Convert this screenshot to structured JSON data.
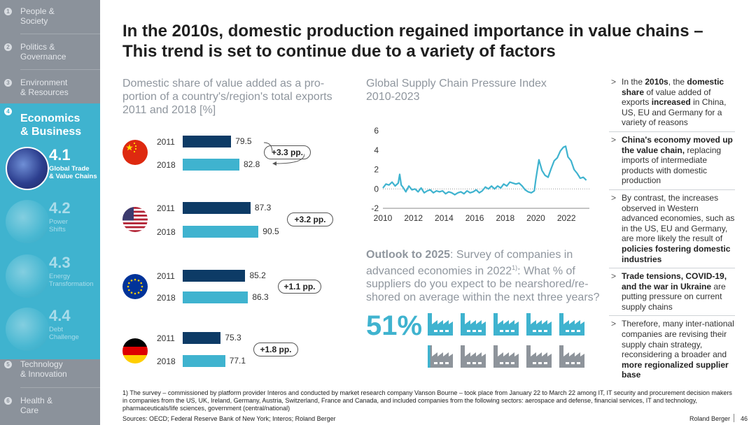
{
  "sidebar": {
    "items": [
      {
        "num": "1",
        "label": "People &\nSociety"
      },
      {
        "num": "2",
        "label": "Politics &\nGovernance"
      },
      {
        "num": "3",
        "label": "Environment\n& Resources"
      },
      {
        "num": "4",
        "label": "Economics\n& Business"
      },
      {
        "num": "5",
        "label": "Technology\n& Innovation"
      },
      {
        "num": "6",
        "label": "Health &\nCare"
      }
    ],
    "subs": [
      {
        "code": "4.1",
        "desc": "Global Trade\n& Value Chains"
      },
      {
        "code": "4.2",
        "desc": "Power\nShifts"
      },
      {
        "code": "4.3",
        "desc": "Energy\nTransformation"
      },
      {
        "code": "4.4",
        "desc": "Debt\nChallenge"
      }
    ]
  },
  "title": "In the 2010s, domestic production regained importance in value chains –\nThis trend is set to continue due to a variety of factors",
  "left_chart_title": "Domestic share of value added as a pro-\nportion of a country's/region's total exports\n2011 and 2018 [%]",
  "line_chart_title": "Global Supply Chain Pressure Index\n2010-2023",
  "outlook": {
    "lead": "Outlook to 2025",
    "text": ": Survey of companies in advanced economies in 2022",
    "sup": "1)",
    "text2": ": What % of suppliers do you expect to be nearshored/re-shored on average within the next three years?",
    "value": "51%",
    "share": 0.51
  },
  "colors": {
    "y2011": "#0d3b66",
    "y2018": "#3fb3cf",
    "sidebar": "#8b929b",
    "accent": "#3fb3cf"
  },
  "chart_data": [
    {
      "type": "bar",
      "title": "Domestic share of value added as a proportion of a country's/region's total exports 2011 and 2018 [%]",
      "categories": [
        "China",
        "US",
        "EU",
        "Germany"
      ],
      "series": [
        {
          "name": "2011",
          "values": [
            79.5,
            87.3,
            85.2,
            75.3
          ]
        },
        {
          "name": "2018",
          "values": [
            82.8,
            90.5,
            86.3,
            77.1
          ]
        }
      ],
      "value_labels": {
        "2011": [
          "79.5",
          "87.3",
          "85.2",
          "75.3"
        ],
        "2018": [
          "82.8",
          "90.5",
          "86.3",
          "77.1"
        ]
      },
      "deltas": [
        "+3.3 pp.",
        "+3.2 pp.",
        "+1.1 pp.",
        "+1.8 pp."
      ],
      "year_labels": [
        "2011",
        "2018"
      ],
      "icons": [
        "china-flag-icon",
        "us-flag-icon",
        "eu-flag-icon",
        "germany-flag-icon"
      ]
    },
    {
      "type": "line",
      "title": "Global Supply Chain Pressure Index 2010-2023",
      "xlim": [
        2010,
        2023.5
      ],
      "ylim": [
        -2,
        6
      ],
      "xticks": [
        "2010",
        "2012",
        "2014",
        "2016",
        "2018",
        "2020",
        "2022"
      ],
      "yticks": [
        "6",
        "4",
        "2",
        "0",
        "-2"
      ],
      "series": [
        {
          "name": "GSCPI",
          "x": [
            2010.0,
            2010.2,
            2010.4,
            2010.6,
            2010.8,
            2011.0,
            2011.1,
            2011.2,
            2011.3,
            2011.5,
            2011.7,
            2011.9,
            2012.1,
            2012.3,
            2012.5,
            2012.7,
            2012.9,
            2013.1,
            2013.3,
            2013.5,
            2013.7,
            2013.9,
            2014.1,
            2014.3,
            2014.5,
            2014.7,
            2014.9,
            2015.1,
            2015.3,
            2015.5,
            2015.7,
            2015.9,
            2016.1,
            2016.3,
            2016.5,
            2016.7,
            2016.9,
            2017.1,
            2017.3,
            2017.5,
            2017.7,
            2017.9,
            2018.1,
            2018.3,
            2018.5,
            2018.7,
            2018.9,
            2019.1,
            2019.3,
            2019.5,
            2019.7,
            2019.9,
            2020.0,
            2020.2,
            2020.4,
            2020.6,
            2020.8,
            2021.0,
            2021.2,
            2021.4,
            2021.6,
            2021.8,
            2021.95,
            2022.1,
            2022.3,
            2022.5,
            2022.7,
            2022.9,
            2023.1,
            2023.3
          ],
          "y": [
            0.1,
            0.5,
            0.4,
            0.7,
            0.3,
            0.6,
            1.5,
            0.4,
            0.2,
            -0.3,
            0.3,
            -0.1,
            0.0,
            -0.3,
            0.1,
            -0.4,
            -0.2,
            -0.1,
            -0.4,
            -0.2,
            -0.3,
            -0.2,
            -0.5,
            -0.3,
            -0.4,
            -0.6,
            -0.4,
            -0.3,
            -0.5,
            -0.2,
            -0.4,
            -0.3,
            -0.1,
            -0.4,
            -0.2,
            0.2,
            0.0,
            0.3,
            0.0,
            0.3,
            0.1,
            0.5,
            0.3,
            0.7,
            0.6,
            0.5,
            0.6,
            0.3,
            -0.1,
            -0.3,
            -0.4,
            -0.2,
            1.0,
            3.0,
            1.9,
            1.4,
            1.2,
            2.1,
            2.9,
            3.2,
            3.9,
            4.3,
            4.4,
            3.3,
            2.9,
            2.0,
            1.6,
            1.1,
            1.2,
            0.9
          ]
        }
      ]
    }
  ],
  "bullets": [
    {
      "parts": [
        {
          "t": "In the ",
          "b": false
        },
        {
          "t": "2010s",
          "b": true
        },
        {
          "t": ", the ",
          "b": false
        },
        {
          "t": "domestic share",
          "b": true
        },
        {
          "t": " of value added of exports ",
          "b": false
        },
        {
          "t": "increased",
          "b": true
        },
        {
          "t": " in China, US, EU and Germany for a variety of reasons",
          "b": false
        }
      ]
    },
    {
      "parts": [
        {
          "t": "China's economy moved up the value chain,",
          "b": true
        },
        {
          "t": " replacing imports of intermediate products with domestic production",
          "b": false
        }
      ]
    },
    {
      "parts": [
        {
          "t": "By contrast, the increases observed in Western advanced economies, such as in the US, EU and Germany, are more likely the result of ",
          "b": false
        },
        {
          "t": "policies fostering domestic industries",
          "b": true
        }
      ]
    },
    {
      "parts": [
        {
          "t": "Trade tensions, COVID-19, and the war in Ukraine",
          "b": true
        },
        {
          "t": " are putting pressure on current supply chains",
          "b": false
        }
      ]
    },
    {
      "parts": [
        {
          "t": "Therefore, many inter-national companies are revising their supply chain strategy, reconsidering a broader and ",
          "b": false
        },
        {
          "t": "more regionalized supplier base",
          "b": true
        }
      ]
    }
  ],
  "bullet_marker": ">",
  "footnote": "1) The survey – commissioned by platform provider Interos and conducted by market research company Vanson Bourne – took place from January 22 to March 22 among IT, IT security and procurement decision makers in companies from the US, UK, Ireland, Germany, Austria, Switzerland, France and Canada, and included companies from the following sectors: aerospace and defense, financial services, IT and technology, pharmaceuticals/life sciences, government (central/national)",
  "sources": "Sources: OECD; Federal Reserve Bank of New York; Interos; Roland Berger",
  "brand": "Roland Berger",
  "page_number": "46"
}
